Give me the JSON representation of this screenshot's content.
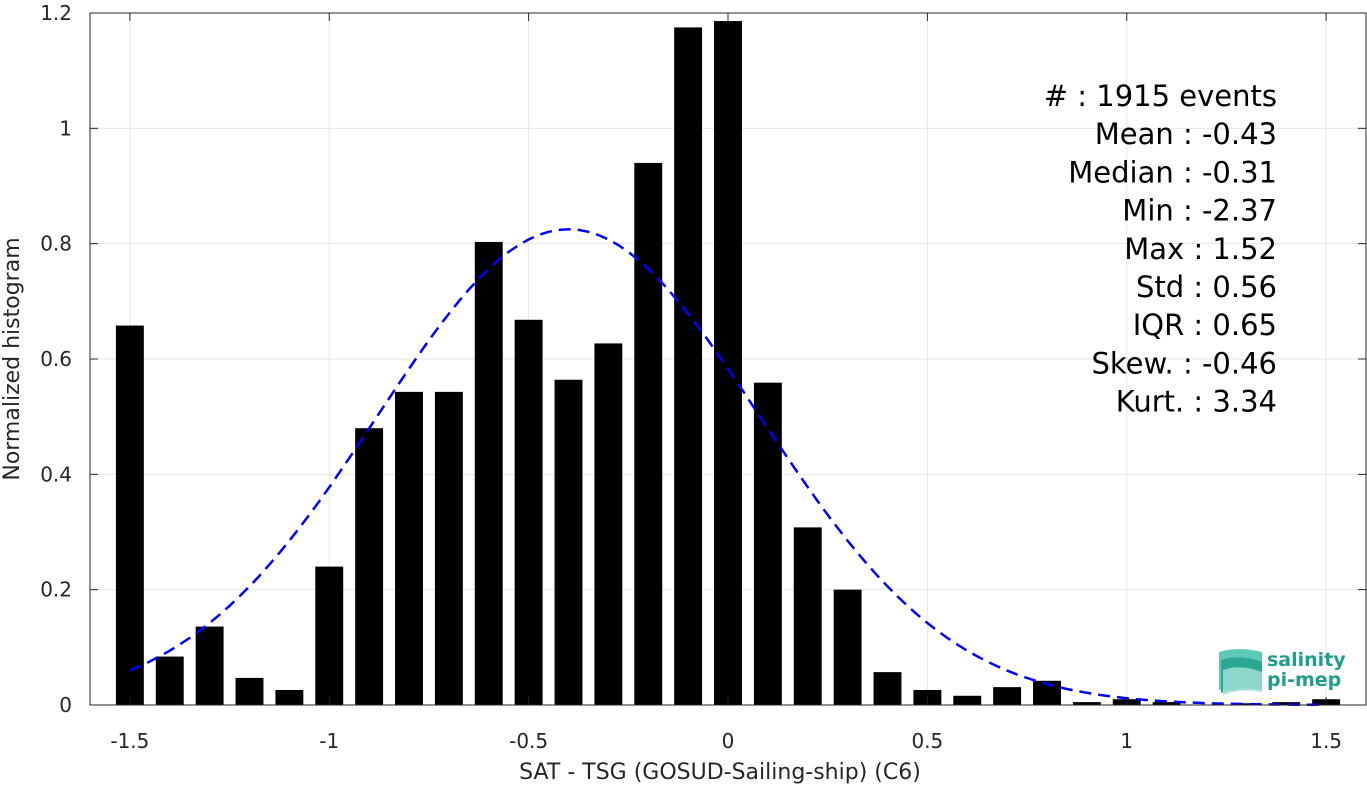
{
  "chart_data": {
    "type": "bar",
    "xlabel": "SAT - TSG (GOSUD-Sailing-ship) (C6)",
    "ylabel": "Normalized histogram",
    "xlim": [
      -1.6,
      1.6
    ],
    "ylim": [
      0,
      1.2
    ],
    "x_ticks": [
      -1.5,
      -1,
      -0.5,
      0,
      0.5,
      1,
      1.5
    ],
    "x_tick_labels": [
      "-1.5",
      "-1",
      "-0.5",
      "0",
      "0.5",
      "1",
      "1.5"
    ],
    "y_ticks": [
      0,
      0.2,
      0.4,
      0.6,
      0.8,
      1,
      1.2
    ],
    "y_tick_labels": [
      "0",
      "0.2",
      "0.4",
      "0.6",
      "0.8",
      "1",
      "1.2"
    ],
    "grid": true,
    "bar_width": 0.07,
    "bars": {
      "x": [
        -1.5,
        -1.4,
        -1.3,
        -1.2,
        -1.1,
        -1.0,
        -0.9,
        -0.8,
        -0.7,
        -0.6,
        -0.5,
        -0.4,
        -0.3,
        -0.2,
        -0.1,
        0.0,
        0.1,
        0.2,
        0.3,
        0.4,
        0.5,
        0.6,
        0.7,
        0.8,
        0.9,
        1.0,
        1.1,
        1.2,
        1.3,
        1.4,
        1.5
      ],
      "values": [
        0.658,
        0.084,
        0.136,
        0.047,
        0.026,
        0.24,
        0.48,
        0.543,
        0.543,
        0.803,
        0.668,
        0.564,
        0.627,
        0.94,
        1.175,
        1.186,
        0.559,
        0.308,
        0.2,
        0.057,
        0.026,
        0.016,
        0.031,
        0.042,
        0.005,
        0.01,
        0.005,
        0.0,
        0.003,
        0.005,
        0.01
      ],
      "color": "#000000"
    },
    "fit_curve": {
      "style": "dashed",
      "color": "#0000ff",
      "mean": -0.4,
      "std": 0.48,
      "peak": 0.825,
      "x_range": [
        -1.5,
        1.5
      ]
    },
    "stats": [
      {
        "label": "#",
        "sep": ":",
        "value": "1915 events"
      },
      {
        "label": "Mean",
        "sep": ":",
        "value": "-0.43"
      },
      {
        "label": "Median",
        "sep": ":",
        "value": "-0.31"
      },
      {
        "label": "Min",
        "sep": ":",
        "value": "-2.37"
      },
      {
        "label": "Max",
        "sep": ":",
        "value": "1.52"
      },
      {
        "label": "Std",
        "sep": ":",
        "value": "0.56"
      },
      {
        "label": "IQR",
        "sep": ":",
        "value": "0.65"
      },
      {
        "label": "Skew.",
        "sep": ":",
        "value": "-0.46"
      },
      {
        "label": "Kurt.",
        "sep": ":",
        "value": "3.34"
      }
    ]
  },
  "logo": {
    "line1": "salinity",
    "line2": "pi-mep",
    "color": "#1f9e8c"
  }
}
